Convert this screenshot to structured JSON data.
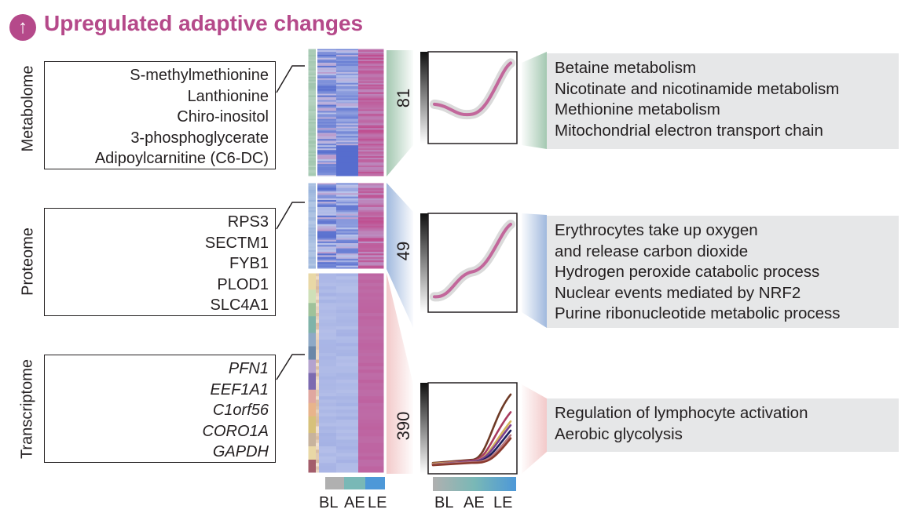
{
  "colors": {
    "title": "#b5498a",
    "metabolome": "#9fc5ad",
    "proteome": "#9bb5dc",
    "transcriptome": "#f2c7c7",
    "heat_low": "#3d58c7",
    "heat_mid": "#b9c3ea",
    "heat_high": "#c03c82",
    "trend_line": "#c2679b",
    "band": "#d4d4d4",
    "bar_BL": "#b0b0b0",
    "bar_AE": "#79b8b6",
    "bar_LE": "#4d98d8"
  },
  "header": {
    "title": "Upregulated adaptive changes",
    "icon": "up-arrow-circle-icon",
    "icon_glyph": "↑"
  },
  "omics": [
    {
      "id": "metabolome",
      "label": "Metabolome",
      "italic": false,
      "features": [
        "S-methylmethionine",
        "Lanthionine",
        "Chiro-inositol",
        "3-phosphoglycerate",
        "Adipoylcarnitine (C6-DC)"
      ]
    },
    {
      "id": "proteome",
      "label": "Proteome",
      "italic": false,
      "features": [
        "RPS3",
        "SECTM1",
        "FYB1",
        "PLOD1",
        "SLC4A1"
      ]
    },
    {
      "id": "transcriptome",
      "label": "Transcriptome",
      "italic": true,
      "features": [
        "PFN1",
        "EEF1A1",
        "C1orf56",
        "CORO1A",
        "GAPDH"
      ]
    }
  ],
  "clusters": [
    {
      "omic": "metabolome",
      "count": "81",
      "trend": [
        0.42,
        0.3,
        0.92
      ],
      "pathways": [
        "Betaine metabolism",
        "Nicotinate and nicotinamide metabolism",
        "Methionine metabolism",
        "Mitochondrial electron transport chain"
      ]
    },
    {
      "omic": "proteome",
      "count": "49",
      "trend": [
        0.12,
        0.4,
        0.93
      ],
      "pathways": [
        "Erythrocytes take up oxygen",
        "and release carbon dioxide",
        "Hydrogen peroxide catabolic process",
        "Nuclear events mediated by NRF2",
        "Purine ribonucleotide metabolic process"
      ]
    },
    {
      "omic": "transcriptome",
      "count": "390",
      "pathways": [
        "Regulation of lymphocyte activation",
        "Aerobic glycolysis"
      ],
      "trend_series": [
        {
          "color": "#6e3a26",
          "values": [
            0.06,
            0.1,
            0.95
          ]
        },
        {
          "color": "#a83a5e",
          "values": [
            0.05,
            0.09,
            0.72
          ]
        },
        {
          "color": "#d4b15a",
          "values": [
            0.05,
            0.08,
            0.6
          ]
        },
        {
          "color": "#7a3f8e",
          "values": [
            0.04,
            0.08,
            0.55
          ]
        },
        {
          "color": "#1c1f5c",
          "values": [
            0.04,
            0.07,
            0.48
          ]
        },
        {
          "color": "#b8797f",
          "values": [
            0.04,
            0.07,
            0.42
          ]
        },
        {
          "color": "#8a3a2e",
          "values": [
            0.03,
            0.06,
            0.38
          ]
        }
      ]
    }
  ],
  "conditions": [
    "BL",
    "AE",
    "LE"
  ],
  "axis_labels": {
    "heatmap": [
      "BL",
      "AE",
      "LE"
    ],
    "trend": [
      "BL",
      "AE",
      "LE"
    ]
  }
}
